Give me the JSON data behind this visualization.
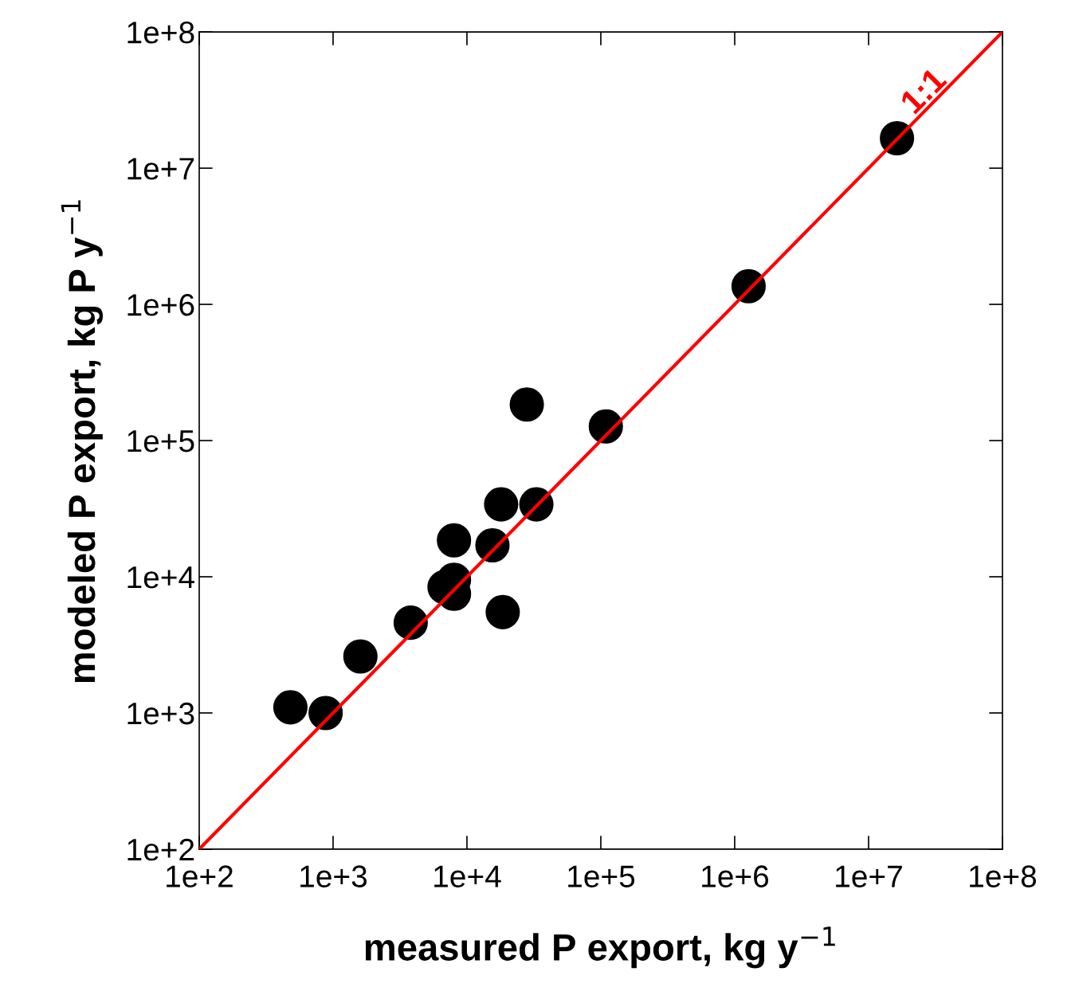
{
  "chart_data": {
    "type": "scatter",
    "xlabel": "measured P export, kg y$^{−1}$",
    "ylabel": "modeled P export, kg P y$^{−1}$",
    "log": "xy",
    "grid": false,
    "xlim": [
      100,
      100000000
    ],
    "ylim": [
      100,
      100000000
    ],
    "xticks": [
      {
        "value": 100,
        "label": "1e+2"
      },
      {
        "value": 1000,
        "label": "1e+3"
      },
      {
        "value": 10000,
        "label": "1e+4"
      },
      {
        "value": 100000,
        "label": "1e+5"
      },
      {
        "value": 1000000,
        "label": "1e+6"
      },
      {
        "value": 10000000,
        "label": "1e+7"
      },
      {
        "value": 100000000,
        "label": "1e+8"
      }
    ],
    "yticks": [
      {
        "value": 100,
        "label": "1e+2"
      },
      {
        "value": 1000,
        "label": "1e+3"
      },
      {
        "value": 10000,
        "label": "1e+4"
      },
      {
        "value": 100000,
        "label": "1e+5"
      },
      {
        "value": 1000000,
        "label": "1e+6"
      },
      {
        "value": 10000000,
        "label": "1e+7"
      },
      {
        "value": 100000000,
        "label": "1e+8"
      }
    ],
    "series": [
      {
        "color": "#000000",
        "marker": "circle",
        "x": [
          480,
          880,
          1600,
          3800,
          6800,
          8000,
          8000,
          8000,
          15500,
          18500,
          18000,
          33000,
          28000,
          109000,
          1270000,
          16300000
        ],
        "values": [
          1100,
          1000,
          2600,
          4600,
          8400,
          9500,
          7500,
          18500,
          17000,
          5500,
          34000,
          34000,
          184000,
          127000,
          1360000,
          16600000
        ]
      },
      {
        "type": "line",
        "name": "1:1",
        "color": "#ff0000",
        "marker": "none",
        "line_style": "solid",
        "x": [
          100,
          100000000
        ],
        "values": [
          100,
          100000000
        ]
      }
    ]
  }
}
